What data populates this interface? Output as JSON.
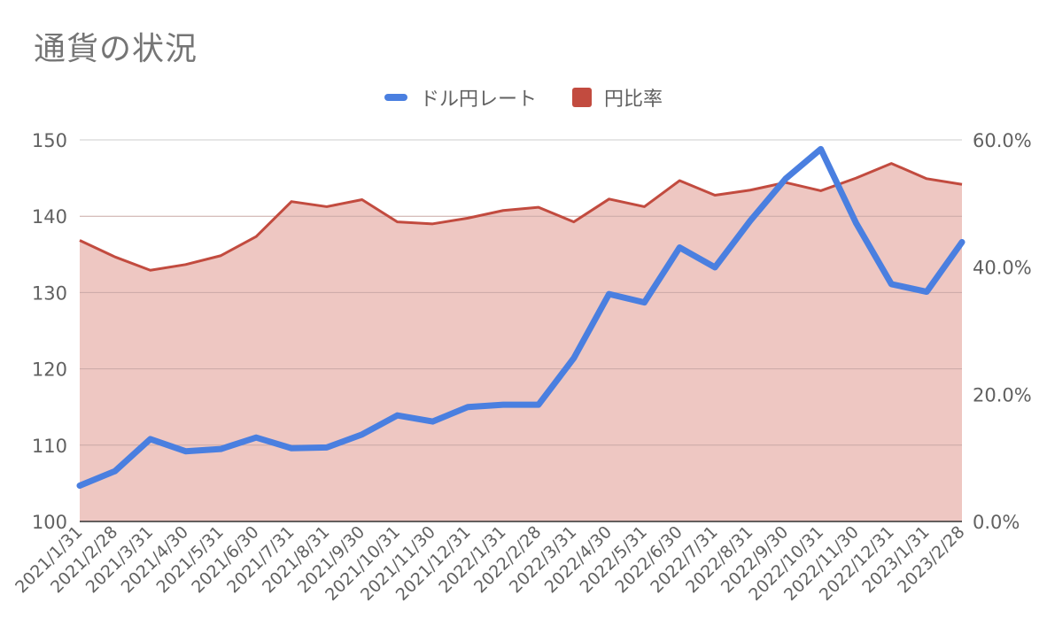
{
  "chart_data": {
    "type": "line",
    "title": "通貨の状況",
    "colors": {
      "rate": "#4A7FE0",
      "ratio_line": "#C24B3F",
      "ratio_fill": "#EEC7C2"
    },
    "categories": [
      "2021/1/31",
      "2021/2/28",
      "2021/3/31",
      "2021/4/30",
      "2021/5/31",
      "2021/6/30",
      "2021/7/31",
      "2021/8/31",
      "2021/9/30",
      "2021/10/31",
      "2021/11/30",
      "2021/12/31",
      "2022/1/31",
      "2022/2/28",
      "2022/3/31",
      "2022/4/30",
      "2022/5/31",
      "2022/6/30",
      "2022/7/31",
      "2022/8/31",
      "2022/9/30",
      "2022/10/31",
      "2022/11/30",
      "2022/12/31",
      "2023/1/31",
      "2023/2/28"
    ],
    "series": [
      {
        "name": "ドル円レート",
        "type": "line",
        "axis": "left",
        "values": [
          104.7,
          106.6,
          110.8,
          109.2,
          109.5,
          111.0,
          109.6,
          109.7,
          111.4,
          113.9,
          113.1,
          115.0,
          115.3,
          115.3,
          121.4,
          129.8,
          128.7,
          135.9,
          133.3,
          139.4,
          144.9,
          148.8,
          139.1,
          131.1,
          130.1,
          136.6
        ]
      },
      {
        "name": "円比率",
        "type": "area",
        "axis": "right",
        "values": [
          44.2,
          41.6,
          39.5,
          40.4,
          41.8,
          44.8,
          50.3,
          49.5,
          50.6,
          47.1,
          46.8,
          47.7,
          48.9,
          49.4,
          47.1,
          50.7,
          49.5,
          53.6,
          51.3,
          52.1,
          53.3,
          52.0,
          54.0,
          56.3,
          53.9,
          53.0
        ]
      }
    ],
    "y_left": {
      "min": 100,
      "max": 150,
      "ticks": [
        "100",
        "110",
        "120",
        "130",
        "140",
        "150"
      ]
    },
    "y_right": {
      "min": 0,
      "max": 60,
      "ticks": [
        "0.0%",
        "20.0%",
        "40.0%",
        "60.0%"
      ],
      "tick_values": [
        0,
        20,
        40,
        60
      ]
    },
    "grid": true,
    "legend": "top-center"
  }
}
